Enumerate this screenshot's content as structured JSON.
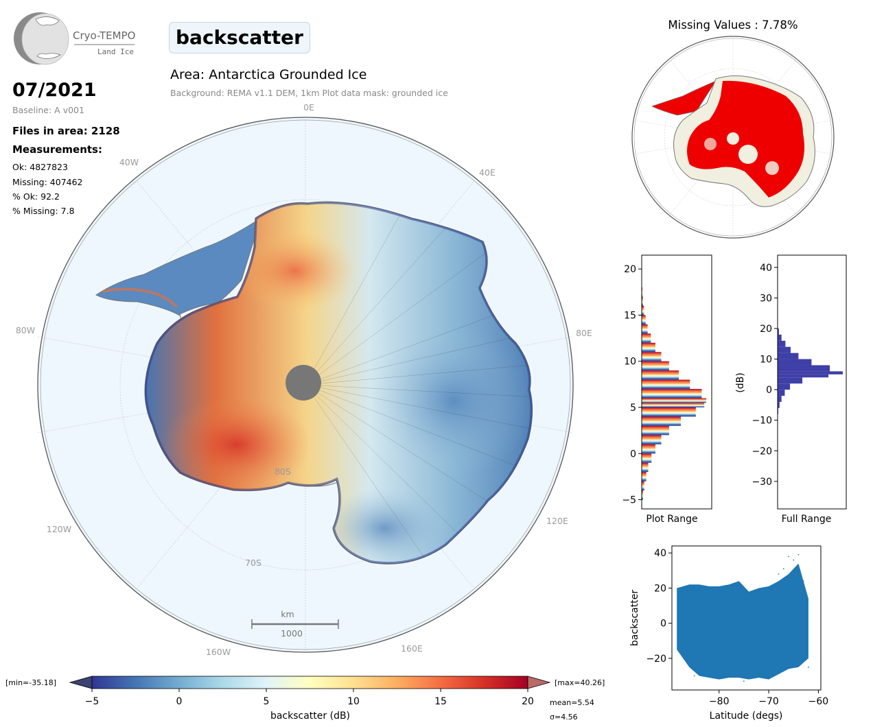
{
  "header": {
    "logo_name": "Cryo-TEMPO",
    "logo_sub": "Land Ice",
    "parameter": "backscatter",
    "area_title": "Area: Antarctica Grounded Ice",
    "area_subtitle": "Background: REMA v1.1 DEM, 1km   Plot data mask: grounded ice"
  },
  "info": {
    "date": "07/2021",
    "baseline": "Baseline: A v001",
    "files": "Files in area: 2128",
    "measurements_heading": "Measurements:",
    "ok": "Ok: 4827823",
    "missing": "Missing: 407462",
    "pct_ok": "% Ok: 92.2",
    "pct_missing": "% Missing: 7.8"
  },
  "map": {
    "lon_labels": [
      "0E",
      "40E",
      "80E",
      "120E",
      "160E",
      "160W",
      "120W",
      "80W",
      "40W"
    ],
    "lat_labels": [
      "80S",
      "70S"
    ],
    "scalebar_unit": "km",
    "scalebar_value": "1000"
  },
  "missing_map": {
    "title": "Missing Values : 7.78%"
  },
  "colorbar": {
    "min_label": "[min=-35.18]",
    "max_label": "[max=40.26]",
    "ticks": [
      "−5",
      "0",
      "5",
      "10",
      "15",
      "20"
    ],
    "label": "backscatter (dB)",
    "mean_label": "mean=5.54",
    "sigma_label": "σ=4.56"
  },
  "colors": {
    "ocean": "#eef7fe",
    "pole_hole": "#777777",
    "missing_red": "#ee0000",
    "full_hist": "#3f3fa8",
    "scatter": "#1f77b4"
  },
  "chart_data": [
    {
      "type": "bar",
      "name": "plot-range-histogram",
      "orientation": "horizontal",
      "xlabel": "Plot Range",
      "ylim": [
        -6,
        21.5
      ],
      "yticks": [
        -5,
        0,
        5,
        10,
        15,
        20
      ],
      "bins": [
        {
          "y": -5,
          "v": 0.02
        },
        {
          "y": -4,
          "v": 0.04
        },
        {
          "y": -3,
          "v": 0.07
        },
        {
          "y": -2,
          "v": 0.1
        },
        {
          "y": -1,
          "v": 0.15
        },
        {
          "y": 0,
          "v": 0.21
        },
        {
          "y": 1,
          "v": 0.3
        },
        {
          "y": 2,
          "v": 0.42
        },
        {
          "y": 3,
          "v": 0.6
        },
        {
          "y": 4,
          "v": 0.83
        },
        {
          "y": 5,
          "v": 0.96
        },
        {
          "y": 5.5,
          "v": 0.99
        },
        {
          "y": 6,
          "v": 0.92
        },
        {
          "y": 7,
          "v": 0.74
        },
        {
          "y": 8,
          "v": 0.57
        },
        {
          "y": 9,
          "v": 0.42
        },
        {
          "y": 10,
          "v": 0.3
        },
        {
          "y": 11,
          "v": 0.21
        },
        {
          "y": 12,
          "v": 0.14
        },
        {
          "y": 13,
          "v": 0.09
        },
        {
          "y": 14,
          "v": 0.06
        },
        {
          "y": 15,
          "v": 0.035
        },
        {
          "y": 16,
          "v": 0.02
        },
        {
          "y": 17,
          "v": 0.01
        }
      ]
    },
    {
      "type": "bar",
      "name": "full-range-histogram",
      "orientation": "horizontal",
      "xlabel": "Full Range",
      "ylabel": "(dB)",
      "ylim": [
        -39,
        44
      ],
      "yticks": [
        -30,
        -20,
        -10,
        0,
        10,
        20,
        30,
        40
      ],
      "bins": [
        {
          "y": -8,
          "v": 0.01
        },
        {
          "y": -6,
          "v": 0.03
        },
        {
          "y": -4,
          "v": 0.06
        },
        {
          "y": -2,
          "v": 0.11
        },
        {
          "y": 0,
          "v": 0.19
        },
        {
          "y": 2,
          "v": 0.38
        },
        {
          "y": 4,
          "v": 0.78
        },
        {
          "y": 5,
          "v": 1.0
        },
        {
          "y": 6,
          "v": 0.8
        },
        {
          "y": 8,
          "v": 0.52
        },
        {
          "y": 10,
          "v": 0.32
        },
        {
          "y": 12,
          "v": 0.2
        },
        {
          "y": 14,
          "v": 0.12
        },
        {
          "y": 16,
          "v": 0.06
        },
        {
          "y": 18,
          "v": 0.02
        }
      ]
    },
    {
      "type": "scatter",
      "name": "backscatter-vs-latitude",
      "xlabel": "Latitude (degs)",
      "ylabel": "backscatter",
      "xlim": [
        -89.5,
        -59.5
      ],
      "ylim": [
        -38,
        44
      ],
      "xticks": [
        -80,
        -70,
        -60
      ],
      "yticks": [
        -20,
        0,
        20,
        40
      ],
      "envelope": [
        {
          "x": -88.5,
          "lo": -15,
          "hi": 20
        },
        {
          "x": -86,
          "lo": -25,
          "hi": 22
        },
        {
          "x": -84,
          "lo": -30,
          "hi": 22
        },
        {
          "x": -82,
          "lo": -31,
          "hi": 21
        },
        {
          "x": -80,
          "lo": -32,
          "hi": 21
        },
        {
          "x": -78,
          "lo": -31,
          "hi": 22
        },
        {
          "x": -76,
          "lo": -31,
          "hi": 24
        },
        {
          "x": -74,
          "lo": -32,
          "hi": 18
        },
        {
          "x": -72,
          "lo": -31,
          "hi": 20
        },
        {
          "x": -70,
          "lo": -32,
          "hi": 21
        },
        {
          "x": -68,
          "lo": -29,
          "hi": 24
        },
        {
          "x": -66,
          "lo": -26,
          "hi": 28
        },
        {
          "x": -64,
          "lo": -25,
          "hi": 34
        },
        {
          "x": -62,
          "lo": -20,
          "hi": 14
        }
      ]
    }
  ]
}
